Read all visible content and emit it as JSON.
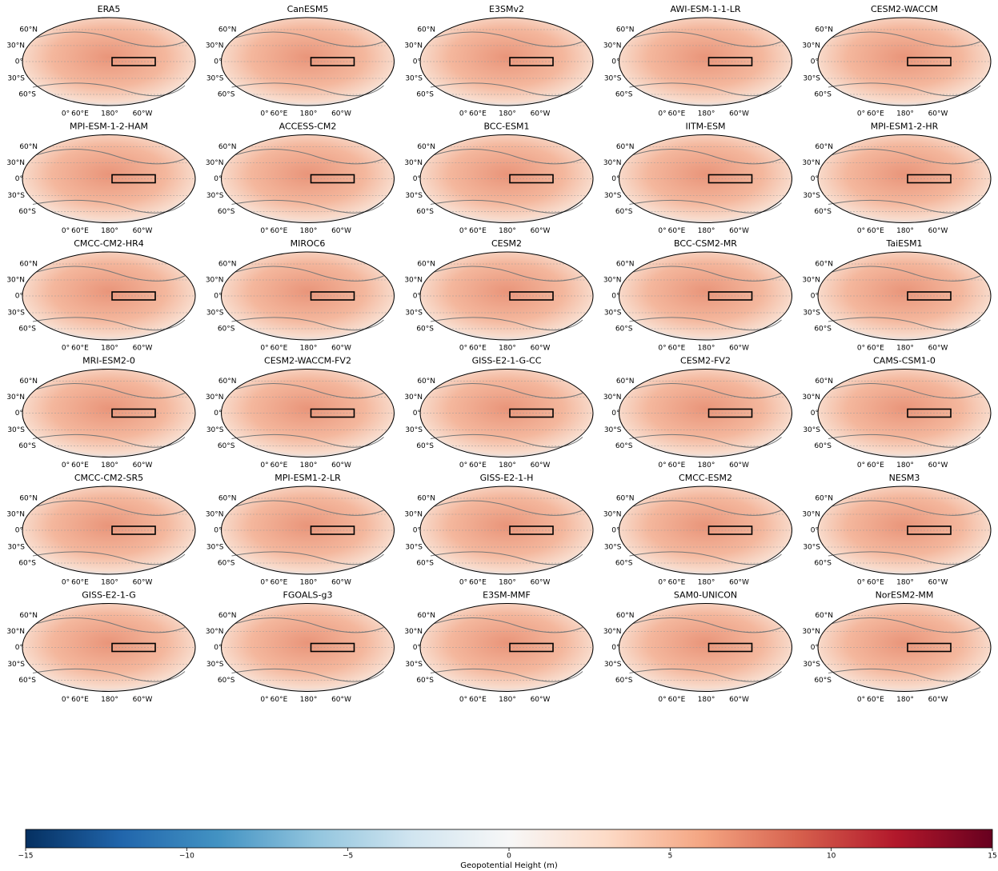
{
  "panels": [
    {
      "title": "ERA5"
    },
    {
      "title": "CanESM5"
    },
    {
      "title": "E3SMv2"
    },
    {
      "title": "AWI-ESM-1-1-LR"
    },
    {
      "title": "CESM2-WACCM"
    },
    {
      "title": "MPI-ESM-1-2-HAM"
    },
    {
      "title": "ACCESS-CM2"
    },
    {
      "title": "BCC-ESM1"
    },
    {
      "title": "IITM-ESM"
    },
    {
      "title": "MPI-ESM1-2-HR"
    },
    {
      "title": "CMCC-CM2-HR4"
    },
    {
      "title": "MIROC6"
    },
    {
      "title": "CESM2"
    },
    {
      "title": "BCC-CSM2-MR"
    },
    {
      "title": "TaiESM1"
    },
    {
      "title": "MRI-ESM2-0"
    },
    {
      "title": "CESM2-WACCM-FV2"
    },
    {
      "title": "GISS-E2-1-G-CC"
    },
    {
      "title": "CESM2-FV2"
    },
    {
      "title": "CAMS-CSM1-0"
    },
    {
      "title": "CMCC-CM2-SR5"
    },
    {
      "title": "MPI-ESM1-2-LR"
    },
    {
      "title": "GISS-E2-1-H"
    },
    {
      "title": "CMCC-ESM2"
    },
    {
      "title": "NESM3"
    },
    {
      "title": "GISS-E2-1-G"
    },
    {
      "title": "FGOALS-g3"
    },
    {
      "title": "E3SM-MMF"
    },
    {
      "title": "SAM0-UNICON"
    },
    {
      "title": "NorESM2-MM"
    }
  ],
  "lat_labels": [
    "60°N",
    "30°N",
    "0°",
    "30°S",
    "60°S"
  ],
  "lon_labels": [
    "0°",
    "60°E",
    "180°",
    "60°W"
  ],
  "colorbar": {
    "label": "Geopotential Height (m)",
    "lim": [
      -15,
      15
    ],
    "ticks": [
      {
        "value": -15,
        "label": "−15"
      },
      {
        "value": -10,
        "label": "−10"
      },
      {
        "value": -5,
        "label": "−5"
      },
      0,
      5,
      10,
      15
    ],
    "cmap": [
      "#053061",
      "#2166ac",
      "#4393c3",
      "#92c5de",
      "#d1e5f0",
      "#f7f7f7",
      "#fddbc7",
      "#f4a582",
      "#d6604d",
      "#b2182b",
      "#67001f"
    ]
  }
}
